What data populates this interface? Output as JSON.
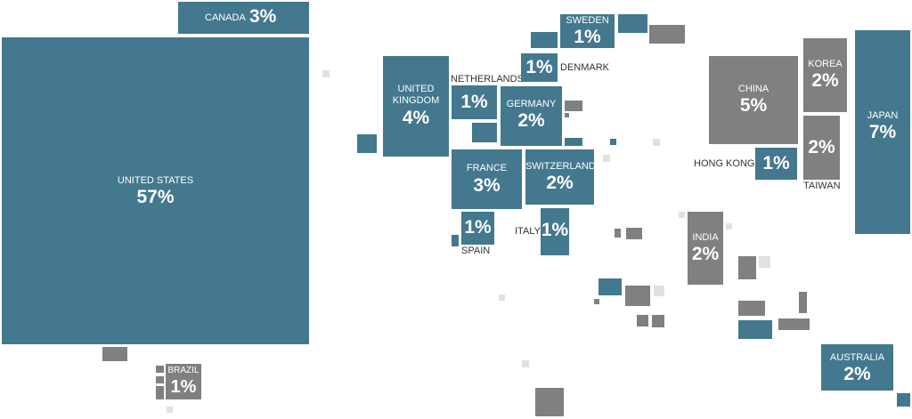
{
  "countries": {
    "united_states": {
      "name": "UNITED STATES",
      "share": "57%"
    },
    "canada": {
      "name": "CANADA",
      "share": "3%"
    },
    "brazil": {
      "name": "BRAZIL",
      "share": "1%"
    },
    "united_kingdom": {
      "name": "UNITED KINGDOM",
      "share": "4%"
    },
    "netherlands": {
      "name": "NETHERLANDS",
      "share": "1%"
    },
    "germany": {
      "name": "GERMANY",
      "share": "2%"
    },
    "sweden": {
      "name": "SWEDEN",
      "share": "1%"
    },
    "denmark": {
      "name": "DENMARK",
      "share": "1%"
    },
    "france": {
      "name": "FRANCE",
      "share": "3%"
    },
    "switzerland": {
      "name": "SWITZERLAND",
      "share": "2%"
    },
    "spain": {
      "name": "SPAIN",
      "share": "1%"
    },
    "italy": {
      "name": "ITALY",
      "share": "1%"
    },
    "china": {
      "name": "CHINA",
      "share": "5%"
    },
    "korea": {
      "name": "KOREA",
      "share": "2%"
    },
    "japan": {
      "name": "JAPAN",
      "share": "7%"
    },
    "hong_kong": {
      "name": "HONG KONG",
      "share": "1%"
    },
    "taiwan": {
      "name": "TAIWAN",
      "share": "2%"
    },
    "india": {
      "name": "INDIA",
      "share": "2%"
    },
    "australia": {
      "name": "AUSTRALIA",
      "share": "2%"
    }
  },
  "colors": {
    "blue": "#43788f",
    "gray": "#808080",
    "light_gray": "#e1e1e1"
  }
}
